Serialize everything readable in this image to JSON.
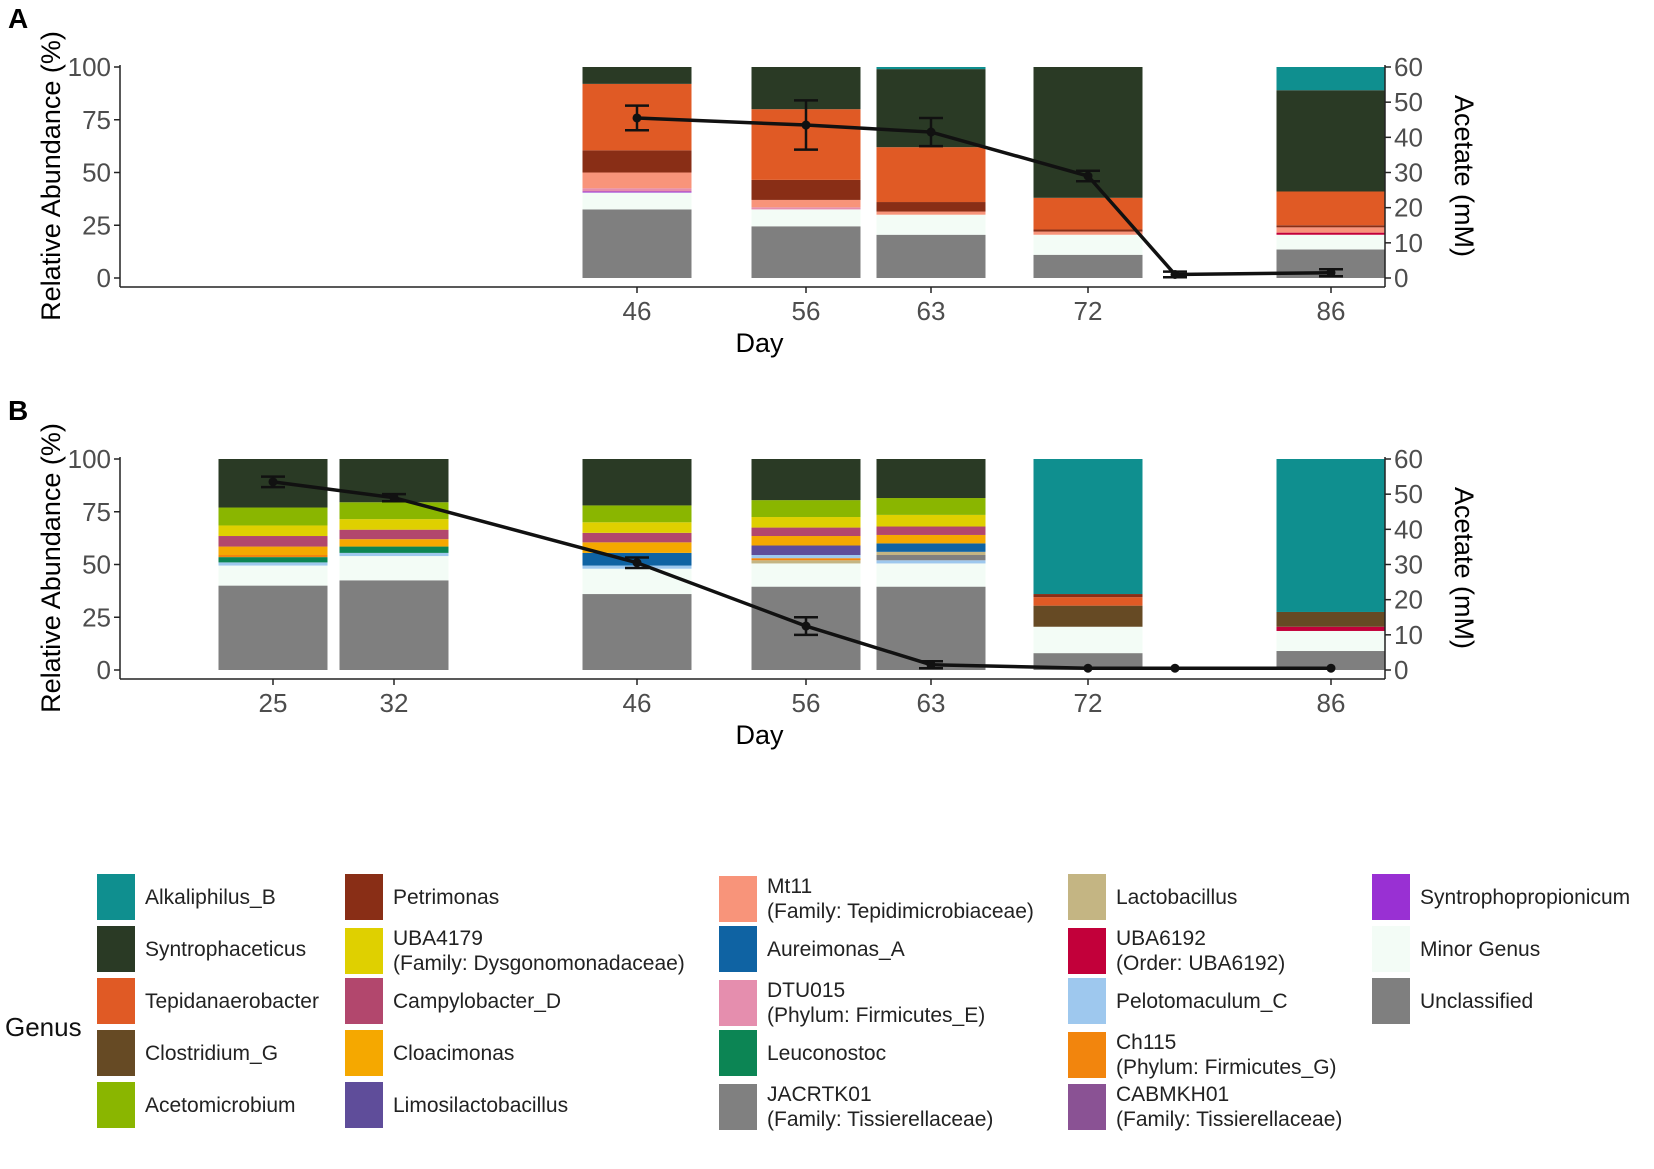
{
  "panels": [
    {
      "label": "A",
      "chart_data": {
        "type": "stacked-bar+line",
        "xlabel": "Day",
        "ylabel": "Relative Abundance (%)",
        "y2label": "Acetate (mM)",
        "ylim": [
          0,
          100
        ],
        "y2lim": [
          0,
          60
        ],
        "yticks": [
          "0",
          "25",
          "50",
          "75",
          "100"
        ],
        "y2ticks": [
          "0",
          "10",
          "20",
          "30",
          "40",
          "50",
          "60"
        ],
        "xticks": [
          "46",
          "56",
          "63",
          "72",
          "86"
        ],
        "bars": [
          {
            "day": 46,
            "stack": [
              {
                "genus": "Unclassified",
                "value": 32.5
              },
              {
                "genus": "Minor Genus",
                "value": 8
              },
              {
                "genus": "Syntrophopropionicum",
                "value": 0.5
              },
              {
                "genus": "DTU015 (Phylum: Firmicutes_E)",
                "value": 1.5
              },
              {
                "genus": "Mt11 (Family: Tepidimicrobiaceae)",
                "value": 7.5
              },
              {
                "genus": "Petrimonas",
                "value": 10.5
              },
              {
                "genus": "Tepidanaerobacter",
                "value": 31.5
              },
              {
                "genus": "Syntrophaceticus",
                "value": 8
              }
            ]
          },
          {
            "day": 56,
            "stack": [
              {
                "genus": "Unclassified",
                "value": 24.5
              },
              {
                "genus": "Minor Genus",
                "value": 8
              },
              {
                "genus": "DTU015 (Phylum: Firmicutes_E)",
                "value": 1
              },
              {
                "genus": "Mt11 (Family: Tepidimicrobiaceae)",
                "value": 3.5
              },
              {
                "genus": "Petrimonas",
                "value": 9.5
              },
              {
                "genus": "Tepidanaerobacter",
                "value": 33.5
              },
              {
                "genus": "Syntrophaceticus",
                "value": 20
              }
            ]
          },
          {
            "day": 63,
            "stack": [
              {
                "genus": "Unclassified",
                "value": 20.5
              },
              {
                "genus": "Minor Genus",
                "value": 9.5
              },
              {
                "genus": "Mt11 (Family: Tepidimicrobiaceae)",
                "value": 1.5
              },
              {
                "genus": "Petrimonas",
                "value": 4.5
              },
              {
                "genus": "Tepidanaerobacter",
                "value": 26
              },
              {
                "genus": "Syntrophaceticus",
                "value": 37
              },
              {
                "genus": "Alkaliphilus_B",
                "value": 1
              }
            ]
          },
          {
            "day": 72,
            "stack": [
              {
                "genus": "Unclassified",
                "value": 11
              },
              {
                "genus": "Minor Genus",
                "value": 9.5
              },
              {
                "genus": "Mt11 (Family: Tepidimicrobiaceae)",
                "value": 1.5
              },
              {
                "genus": "Petrimonas",
                "value": 1
              },
              {
                "genus": "Tepidanaerobacter",
                "value": 15
              },
              {
                "genus": "Syntrophaceticus",
                "value": 62
              }
            ]
          },
          {
            "day": 86,
            "stack": [
              {
                "genus": "Unclassified",
                "value": 13.5
              },
              {
                "genus": "Minor Genus",
                "value": 7
              },
              {
                "genus": "UBA6192 (Order: UBA6192)",
                "value": 1
              },
              {
                "genus": "Mt11 (Family: Tepidimicrobiaceae)",
                "value": 2.5
              },
              {
                "genus": "Petrimonas",
                "value": 1
              },
              {
                "genus": "Tepidanaerobacter",
                "value": 16
              },
              {
                "genus": "Syntrophaceticus",
                "value": 48
              },
              {
                "genus": "Alkaliphilus_B",
                "value": 11
              }
            ]
          }
        ],
        "acetate": [
          {
            "day": 46,
            "value": 45.5,
            "err": 3.5
          },
          {
            "day": 56,
            "value": 43.5,
            "err": 7
          },
          {
            "day": 63,
            "value": 41.5,
            "err": 4
          },
          {
            "day": 72,
            "value": 29,
            "err": 1.5
          },
          {
            "day": 79,
            "value": 1,
            "err": 0.8
          },
          {
            "day": 86,
            "value": 1.5,
            "err": 1
          }
        ]
      }
    },
    {
      "label": "B",
      "chart_data": {
        "type": "stacked-bar+line",
        "xlabel": "Day",
        "ylabel": "Relative Abundance (%)",
        "y2label": "Acetate (mM)",
        "ylim": [
          0,
          100
        ],
        "y2lim": [
          0,
          60
        ],
        "yticks": [
          "0",
          "25",
          "50",
          "75",
          "100"
        ],
        "y2ticks": [
          "0",
          "10",
          "20",
          "30",
          "40",
          "50",
          "60"
        ],
        "xticks": [
          "25",
          "32",
          "46",
          "56",
          "63",
          "72",
          "86"
        ],
        "bars": [
          {
            "day": 25,
            "stack": [
              {
                "genus": "Unclassified",
                "value": 40
              },
              {
                "genus": "Minor Genus",
                "value": 9.5
              },
              {
                "genus": "Pelotomaculum_C",
                "value": 1.5
              },
              {
                "genus": "Leuconostoc",
                "value": 2.5
              },
              {
                "genus": "Ch115 (Phylum: Firmicutes_G)",
                "value": 1
              },
              {
                "genus": "Cloacimonas",
                "value": 4
              },
              {
                "genus": "Campylobacter_D",
                "value": 5
              },
              {
                "genus": "UBA4179 (Family: Dysgonomonadaceae)",
                "value": 5
              },
              {
                "genus": "Acetomicrobium",
                "value": 8.5
              },
              {
                "genus": "Syntrophaceticus",
                "value": 23
              }
            ]
          },
          {
            "day": 32,
            "stack": [
              {
                "genus": "Unclassified",
                "value": 42.5
              },
              {
                "genus": "Minor Genus",
                "value": 11.5
              },
              {
                "genus": "Pelotomaculum_C",
                "value": 1.5
              },
              {
                "genus": "Leuconostoc",
                "value": 3
              },
              {
                "genus": "Cloacimonas",
                "value": 3.5
              },
              {
                "genus": "Campylobacter_D",
                "value": 4.5
              },
              {
                "genus": "UBA4179 (Family: Dysgonomonadaceae)",
                "value": 5
              },
              {
                "genus": "Acetomicrobium",
                "value": 8
              },
              {
                "genus": "Syntrophaceticus",
                "value": 20.5
              }
            ]
          },
          {
            "day": 46,
            "stack": [
              {
                "genus": "Unclassified",
                "value": 36
              },
              {
                "genus": "Minor Genus",
                "value": 12
              },
              {
                "genus": "Pelotomaculum_C",
                "value": 1.5
              },
              {
                "genus": "Aureimonas_A",
                "value": 6
              },
              {
                "genus": "Cloacimonas",
                "value": 5
              },
              {
                "genus": "Campylobacter_D",
                "value": 4.5
              },
              {
                "genus": "UBA4179 (Family: Dysgonomonadaceae)",
                "value": 5
              },
              {
                "genus": "Acetomicrobium",
                "value": 8
              },
              {
                "genus": "Syntrophaceticus",
                "value": 22
              }
            ]
          },
          {
            "day": 56,
            "stack": [
              {
                "genus": "Unclassified",
                "value": 39.5
              },
              {
                "genus": "Minor Genus",
                "value": 11
              },
              {
                "genus": "Lactobacillus",
                "value": 1.5
              },
              {
                "genus": "Ch115 (Phylum: Firmicutes_G)",
                "value": 1
              },
              {
                "genus": "Pelotomaculum_C",
                "value": 1.5
              },
              {
                "genus": "Limosilactobacillus",
                "value": 4.5
              },
              {
                "genus": "Cloacimonas",
                "value": 4.5
              },
              {
                "genus": "Campylobacter_D",
                "value": 4
              },
              {
                "genus": "UBA4179 (Family: Dysgonomonadaceae)",
                "value": 5
              },
              {
                "genus": "Acetomicrobium",
                "value": 8
              },
              {
                "genus": "Syntrophaceticus",
                "value": 19.5
              }
            ]
          },
          {
            "day": 63,
            "stack": [
              {
                "genus": "Unclassified",
                "value": 39.5
              },
              {
                "genus": "Minor Genus",
                "value": 11
              },
              {
                "genus": "Pelotomaculum_C",
                "value": 1.5
              },
              {
                "genus": "JACRTK01 (Family: Tissierellaceae)",
                "value": 2.5
              },
              {
                "genus": "Lactobacillus",
                "value": 1.5
              },
              {
                "genus": "Aureimonas_A",
                "value": 4
              },
              {
                "genus": "Cloacimonas",
                "value": 4
              },
              {
                "genus": "Campylobacter_D",
                "value": 4
              },
              {
                "genus": "UBA4179 (Family: Dysgonomonadaceae)",
                "value": 5.5
              },
              {
                "genus": "Acetomicrobium",
                "value": 8
              },
              {
                "genus": "Syntrophaceticus",
                "value": 18.5
              }
            ]
          },
          {
            "day": 72,
            "stack": [
              {
                "genus": "Unclassified",
                "value": 8
              },
              {
                "genus": "Minor Genus",
                "value": 12.5
              },
              {
                "genus": "Clostridium_G",
                "value": 10
              },
              {
                "genus": "Tepidanaerobacter",
                "value": 4
              },
              {
                "genus": "Petrimonas",
                "value": 1.5
              },
              {
                "genus": "Alkaliphilus_B",
                "value": 64
              }
            ]
          },
          {
            "day": 86,
            "stack": [
              {
                "genus": "Unclassified",
                "value": 9
              },
              {
                "genus": "Minor Genus",
                "value": 9.5
              },
              {
                "genus": "UBA6192 (Order: UBA6192)",
                "value": 2
              },
              {
                "genus": "Clostridium_G",
                "value": 7
              },
              {
                "genus": "Alkaliphilus_B",
                "value": 72.5
              }
            ]
          }
        ],
        "acetate": [
          {
            "day": 25,
            "value": 53.5,
            "err": 1.5
          },
          {
            "day": 32,
            "value": 49,
            "err": 1
          },
          {
            "day": 46,
            "value": 30.5,
            "err": 1.5
          },
          {
            "day": 56,
            "value": 12.5,
            "err": 2.5
          },
          {
            "day": 63,
            "value": 1.5,
            "err": 1
          },
          {
            "day": 72,
            "value": 0.5,
            "err": 0
          },
          {
            "day": 79,
            "value": 0.5,
            "err": 0
          },
          {
            "day": 86,
            "value": 0.5,
            "err": 0
          }
        ]
      }
    }
  ],
  "legend": {
    "title": "Genus",
    "items": [
      {
        "name": "Alkaliphilus_B",
        "sub": "",
        "color": "#0f8f8f"
      },
      {
        "name": "Syntrophaceticus",
        "sub": "",
        "color": "#2a3a25"
      },
      {
        "name": "Tepidanaerobacter",
        "sub": "",
        "color": "#e05a25"
      },
      {
        "name": "Clostridium_G",
        "sub": "",
        "color": "#664a24"
      },
      {
        "name": "Acetomicrobium",
        "sub": "",
        "color": "#8ab600"
      },
      {
        "name": "Petrimonas",
        "sub": "",
        "color": "#892e16"
      },
      {
        "name": "UBA4179",
        "sub": "(Family: Dysgonomonadaceae)",
        "color": "#dfd000"
      },
      {
        "name": "Campylobacter_D",
        "sub": "",
        "color": "#b2476d"
      },
      {
        "name": "Cloacimonas",
        "sub": "",
        "color": "#f5a800"
      },
      {
        "name": "Limosilactobacillus",
        "sub": "",
        "color": "#5f4d9a"
      },
      {
        "name": "Mt11",
        "sub": "(Family: Tepidimicrobiaceae)",
        "color": "#f8947a"
      },
      {
        "name": "Aureimonas_A",
        "sub": "",
        "color": "#0f63a3"
      },
      {
        "name": "DTU015",
        "sub": "(Phylum: Firmicutes_E)",
        "color": "#e58eae"
      },
      {
        "name": "Leuconostoc",
        "sub": "",
        "color": "#0c8554"
      },
      {
        "name": "JACRTK01",
        "sub": "(Family: Tissierellaceae)",
        "color": "#808080"
      },
      {
        "name": "Lactobacillus",
        "sub": "",
        "color": "#c4b583"
      },
      {
        "name": "UBA6192",
        "sub": "(Order: UBA6192)",
        "color": "#c2003a"
      },
      {
        "name": "Pelotomaculum_C",
        "sub": "",
        "color": "#9ec8ee"
      },
      {
        "name": "Ch115",
        "sub": "(Phylum: Firmicutes_G)",
        "color": "#f2850d"
      },
      {
        "name": "CABMKH01",
        "sub": "(Family: Tissierellaceae)",
        "color": "#8a5294"
      },
      {
        "name": "Syntrophopropionicum",
        "sub": "",
        "color": "#9930d3"
      },
      {
        "name": "Minor Genus",
        "sub": "",
        "color": "#f3fcf6"
      },
      {
        "name": "Unclassified",
        "sub": "",
        "color": "#7f7f7f"
      }
    ]
  }
}
